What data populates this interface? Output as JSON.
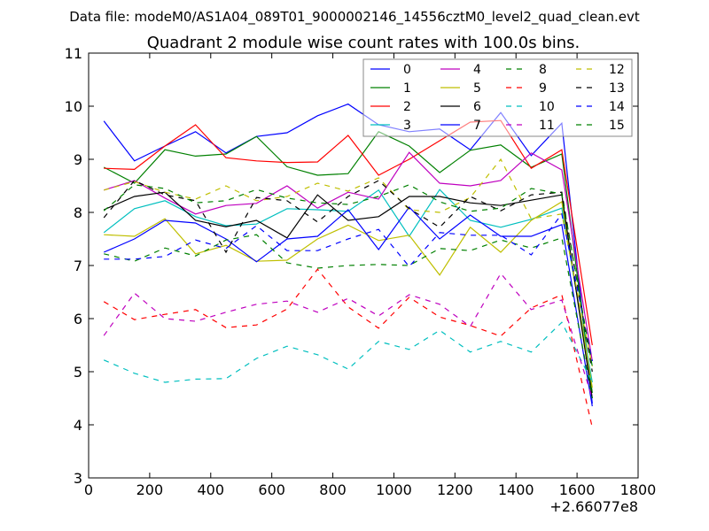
{
  "chart_data": {
    "type": "line",
    "suptitle": "Data file: modeM0/AS1A04_089T01_9000002146_14556cztM0_level2_quad_clean.evt",
    "title": "Quadrant 2 module wise count rates with 100.0s bins.",
    "xlabel": "",
    "ylabel": "",
    "x_offset_label": "+2.66077e8",
    "xlim": [
      0,
      1800
    ],
    "ylim": [
      3,
      11
    ],
    "xticks": [
      0,
      200,
      400,
      600,
      800,
      1000,
      1200,
      1400,
      1600,
      1800
    ],
    "yticks": [
      3,
      4,
      5,
      6,
      7,
      8,
      9,
      10,
      11
    ],
    "legend_position": "top-right",
    "grid": false,
    "x": [
      50,
      150,
      250,
      350,
      450,
      550,
      650,
      750,
      850,
      950,
      1050,
      1150,
      1250,
      1350,
      1450,
      1550,
      1650
    ],
    "series": [
      {
        "name": "0",
        "color": "#0000ff",
        "dash": false,
        "values": [
          9.72,
          8.97,
          9.25,
          9.52,
          9.12,
          9.43,
          9.5,
          9.82,
          10.04,
          9.65,
          9.52,
          9.57,
          9.18,
          9.88,
          9.07,
          9.68,
          4.4
        ]
      },
      {
        "name": "1",
        "color": "#008000",
        "dash": false,
        "values": [
          8.85,
          8.55,
          9.18,
          9.06,
          9.1,
          9.43,
          8.86,
          8.7,
          8.73,
          9.52,
          9.25,
          8.75,
          9.17,
          9.27,
          8.85,
          9.1,
          4.6
        ]
      },
      {
        "name": "2",
        "color": "#ff0000",
        "dash": false,
        "values": [
          8.83,
          8.81,
          9.25,
          9.65,
          9.03,
          8.97,
          8.94,
          8.95,
          9.45,
          8.7,
          9.0,
          9.35,
          9.7,
          9.73,
          8.83,
          9.18,
          5.5
        ]
      },
      {
        "name": "3",
        "color": "#00bfbf",
        "dash": false,
        "values": [
          7.62,
          8.07,
          8.22,
          7.92,
          7.75,
          7.78,
          8.07,
          8.05,
          8.02,
          8.42,
          7.55,
          8.43,
          7.85,
          7.72,
          7.87,
          8.08,
          4.8
        ]
      },
      {
        "name": "4",
        "color": "#bf00bf",
        "dash": false,
        "values": [
          8.42,
          8.6,
          8.27,
          7.97,
          8.13,
          8.17,
          8.5,
          8.08,
          8.38,
          8.25,
          9.13,
          8.55,
          8.5,
          8.6,
          9.12,
          8.8,
          5.2
        ]
      },
      {
        "name": "5",
        "color": "#bfbf00",
        "dash": false,
        "values": [
          7.58,
          7.55,
          7.88,
          7.22,
          7.38,
          7.08,
          7.1,
          7.5,
          7.76,
          7.47,
          7.57,
          6.82,
          7.72,
          7.25,
          7.85,
          8.2,
          4.7
        ]
      },
      {
        "name": "6",
        "color": "#000000",
        "dash": false,
        "values": [
          8.05,
          8.3,
          8.38,
          7.85,
          7.73,
          7.85,
          7.52,
          8.33,
          7.85,
          7.92,
          8.3,
          8.3,
          8.18,
          8.13,
          8.23,
          8.33,
          4.5
        ]
      },
      {
        "name": "7",
        "color": "#0000ff",
        "dash": false,
        "values": [
          7.25,
          7.5,
          7.85,
          7.8,
          7.5,
          7.07,
          7.5,
          7.55,
          8.05,
          7.3,
          8.1,
          7.5,
          7.95,
          7.55,
          7.55,
          7.77,
          4.35
        ]
      },
      {
        "name": "8",
        "color": "#008000",
        "dash": true,
        "values": [
          7.22,
          7.08,
          7.33,
          7.18,
          7.48,
          7.58,
          7.05,
          6.95,
          7.0,
          7.02,
          7.0,
          7.32,
          7.28,
          7.48,
          7.33,
          7.52,
          4.5
        ]
      },
      {
        "name": "9",
        "color": "#ff0000",
        "dash": true,
        "values": [
          6.32,
          5.98,
          6.08,
          6.17,
          5.83,
          5.88,
          6.18,
          6.93,
          6.22,
          5.82,
          6.4,
          6.03,
          5.87,
          5.67,
          6.2,
          6.45,
          3.95
        ]
      },
      {
        "name": "10",
        "color": "#00bfbf",
        "dash": true,
        "values": [
          5.22,
          4.97,
          4.8,
          4.86,
          4.87,
          5.25,
          5.48,
          5.32,
          5.05,
          5.57,
          5.42,
          5.78,
          5.37,
          5.57,
          5.37,
          5.93,
          4.8
        ]
      },
      {
        "name": "11",
        "color": "#bf00bf",
        "dash": true,
        "values": [
          5.68,
          6.48,
          6.0,
          5.95,
          6.12,
          6.27,
          6.33,
          6.12,
          6.38,
          6.05,
          6.45,
          6.27,
          5.85,
          6.85,
          6.17,
          6.35,
          4.5
        ]
      },
      {
        "name": "12",
        "color": "#bfbf00",
        "dash": true,
        "values": [
          8.42,
          8.58,
          8.38,
          8.25,
          8.5,
          8.22,
          8.3,
          8.55,
          8.4,
          8.65,
          8.05,
          8.0,
          8.28,
          9.0,
          7.88,
          7.97,
          5.1
        ]
      },
      {
        "name": "13",
        "color": "#000000",
        "dash": true,
        "values": [
          7.9,
          8.6,
          8.33,
          8.22,
          7.25,
          8.28,
          8.22,
          7.82,
          8.3,
          8.6,
          8.07,
          7.72,
          8.3,
          8.03,
          8.33,
          8.38,
          5.0
        ]
      },
      {
        "name": "14",
        "color": "#0000ff",
        "dash": true,
        "values": [
          7.12,
          7.12,
          7.17,
          7.48,
          7.32,
          7.75,
          7.28,
          7.28,
          7.5,
          7.68,
          6.98,
          7.62,
          7.57,
          7.57,
          7.2,
          7.97,
          5.2
        ]
      },
      {
        "name": "15",
        "color": "#008000",
        "dash": true,
        "values": [
          8.03,
          8.52,
          8.45,
          8.18,
          8.22,
          8.43,
          8.27,
          8.18,
          8.15,
          8.3,
          8.52,
          8.2,
          8.02,
          8.08,
          8.45,
          8.35,
          5.1
        ]
      }
    ]
  }
}
